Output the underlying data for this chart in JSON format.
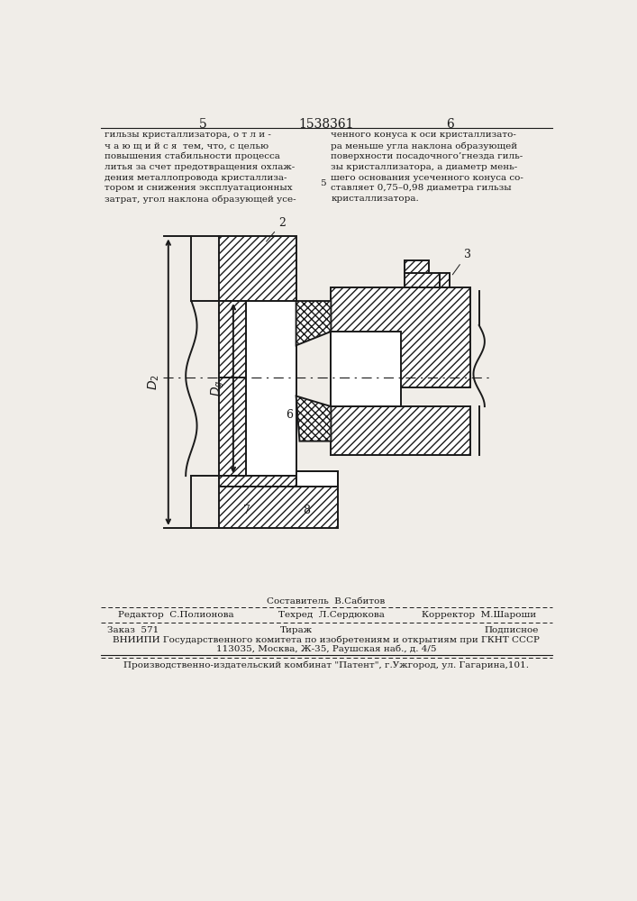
{
  "page_number_left": "5",
  "page_number_center": "1538361",
  "page_number_right": "6",
  "text_left": "гильзы кристаллизатора, о т л и -\nч а ю щ и й с я  тем, что, с целью\nповышения стабильности процесса\nлитья за счет предотвращения охлаж-\nдения металлопровода кристаллиза-\nтором и снижения эксплуатационных\nзатрат, угол наклона образующей усе-",
  "text_right": "ченного конуса к оси кристаллизато-\nра меньше угла наклона образующей\nповерхности посадочного’гнезда гиль-\nзы кристаллизатора, а диаметр мень-\nшего основания усеченного конуса со-\nставляет 0,75–0,98 диаметра гильзы\nкристаллизатора.",
  "footnote_sestavitel": "Составитель  В.Сабитов",
  "footnote_redaktor": "Редактор  С.Полионова",
  "footnote_tehred": "Техред  Л.Сердюкова",
  "footnote_korrektor": "Корректор  М.Шароши",
  "footnote_zakaz": "Заказ  571",
  "footnote_tirazh": "Тираж",
  "footnote_podpisnoe": "Подписное",
  "footnote_vniipи": "ВНИИПИ Государственного комитета по изобретениям и открытиям при ГКНТ СССР",
  "footnote_address": "113035, Москва, Ж-35, Раушская наб., д. 4/5",
  "footnote_patent": "Производственно-издательский комбинат \"Патент\", г.Ужгород, ул. Гагарина,101.",
  "bg_color": "#f0ede8",
  "line_color": "#1a1a1a"
}
